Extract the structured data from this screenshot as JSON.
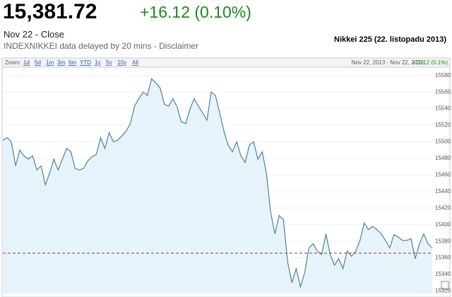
{
  "header": {
    "price": "15,381.72",
    "change": "+16.12 (0.10%)",
    "date": "Nov 22 - Close",
    "delay_note": "INDEXNIKKEI data delayed by 20 mins - Disclaimer",
    "chart_caption": "Nikkei 225 (22. listopadu 2013)"
  },
  "toolbar": {
    "zoom_label": "Zoom:",
    "ranges": [
      "1d",
      "5d",
      "1m",
      "3m",
      "6m",
      "YTD",
      "1y",
      "5y",
      "10y",
      "All"
    ],
    "date_range": "Nov 22, 2013 - Nov 22, 2013",
    "change": "+16.12 (0.1%)"
  },
  "chart_data": {
    "type": "line",
    "color": "#4f8496",
    "fill": "#e6f3fa",
    "values": [
      15502,
      15505,
      15500,
      15471,
      15490,
      15483,
      15479,
      15483,
      15466,
      15471,
      15448,
      15462,
      15479,
      15466,
      15479,
      15492,
      15488,
      15468,
      15466,
      15468,
      15477,
      15482,
      15485,
      15505,
      15492,
      15511,
      15500,
      15502,
      15507,
      15513,
      15522,
      15543,
      15552,
      15560,
      15556,
      15576,
      15571,
      15565,
      15545,
      15543,
      15552,
      15542,
      15524,
      15522,
      15539,
      15552,
      15543,
      15535,
      15526,
      15560,
      15556,
      15535,
      15513,
      15496,
      15488,
      15500,
      15483,
      15475,
      15496,
      15500,
      15479,
      15488,
      15462,
      15415,
      15389,
      15411,
      15406,
      15355,
      15330,
      15347,
      15325,
      15342,
      15372,
      15377,
      15368,
      15364,
      15389,
      15364,
      15351,
      15359,
      15347,
      15368,
      15362,
      15368,
      15381,
      15402,
      15394,
      15398,
      15394,
      15389,
      15381,
      15372,
      15388,
      15385,
      15381,
      15381,
      15383,
      15359,
      15377,
      15389,
      15377,
      15372
    ],
    "reference_line": 15365.6,
    "ylim": [
      15317,
      15590
    ],
    "yticks": [
      15320,
      15340,
      15360,
      15380,
      15400,
      15420,
      15440,
      15460,
      15480,
      15500,
      15520,
      15540,
      15560,
      15580
    ],
    "grid": true
  }
}
